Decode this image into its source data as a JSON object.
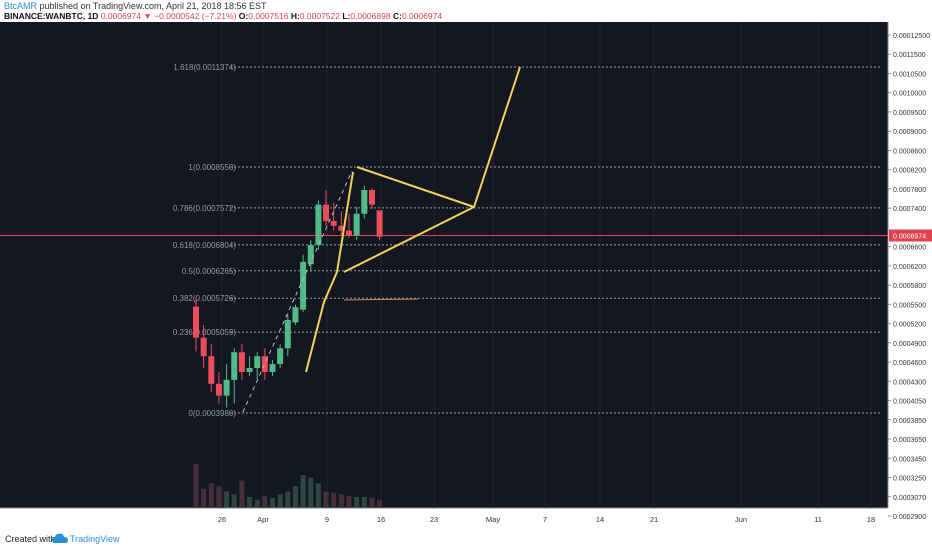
{
  "header": {
    "author": "BtcAMR",
    "published": "published on TradingView.com, April 21, 2018 18:56 EST",
    "symbol": "BINANCE:WANBTC, 1D",
    "last": "0.0006974",
    "arrow": "▼",
    "change": "−0.0000542 (−7.21%)",
    "o_label": "O:",
    "o_value": "0.0007516",
    "h_label": "H:",
    "h_value": "0.0007522",
    "l_label": "L:",
    "l_value": "0.0006898",
    "c_label": "C:",
    "c_value": "0.0006974"
  },
  "footer": {
    "created": "Created with",
    "brand": "TradingView"
  },
  "chart_data": {
    "type": "candlestick",
    "colors": {
      "background": "#131722",
      "up": "#53b987",
      "down": "#eb4d5c",
      "pattern": "#f5d05a",
      "fib": "#9598a1",
      "last_line": "#e0434f"
    },
    "y_ticks": [
      "0.00012500",
      "0.0011500",
      "0.0010500",
      "0.0010000",
      "0.0009500",
      "0.0009000",
      "0.0008600",
      "0.0008200",
      "0.0007800",
      "0.0007400",
      "0.0006974",
      "0.0006600",
      "0.0006200",
      "0.0005800",
      "0.0005500",
      "0.0005200",
      "0.0004900",
      "0.0004600",
      "0.0004300",
      "0.0004050",
      "0.0003850",
      "0.0003650",
      "0.0003450",
      "0.0003250",
      "0.0003070",
      "0.0002900"
    ],
    "x_ticks": [
      "26",
      "Apr",
      "9",
      "16",
      "23",
      "May",
      "7",
      "14",
      "21",
      "Jun",
      "11",
      "18"
    ],
    "last_price": "0.0006974",
    "fib_levels": [
      {
        "label": "1.618(0.0011374)",
        "value": 0.0011374
      },
      {
        "label": "1(0.0008550)",
        "value": 0.000855
      },
      {
        "label": "0.786(0.0007572)",
        "value": 0.0007572
      },
      {
        "label": "0.618(0.0006804)",
        "value": 0.0006804
      },
      {
        "label": "0.5(0.0006265)",
        "value": 0.0006265
      },
      {
        "label": "0.382(0.0005726)",
        "value": 0.0005726
      },
      {
        "label": "0.236(0.0005059)",
        "value": 0.0005059
      },
      {
        "label": "0(0.0003980)",
        "value": 0.000398
      }
    ],
    "candles": [
      {
        "o": 0.000556,
        "h": 0.000575,
        "l": 0.000476,
        "c": 0.000495
      },
      {
        "o": 0.000495,
        "h": 0.00052,
        "l": 0.000455,
        "c": 0.00047
      },
      {
        "o": 0.00047,
        "h": 0.000485,
        "l": 0.000425,
        "c": 0.000435
      },
      {
        "o": 0.000435,
        "h": 0.00045,
        "l": 0.00041,
        "c": 0.00042
      },
      {
        "o": 0.00042,
        "h": 0.00046,
        "l": 0.000405,
        "c": 0.00044
      },
      {
        "o": 0.00044,
        "h": 0.00048,
        "l": 0.00041,
        "c": 0.000475
      },
      {
        "o": 0.000475,
        "h": 0.000485,
        "l": 0.00044,
        "c": 0.00045
      },
      {
        "o": 0.00045,
        "h": 0.00047,
        "l": 0.000445,
        "c": 0.000455
      },
      {
        "o": 0.000455,
        "h": 0.000475,
        "l": 0.00044,
        "c": 0.00047
      },
      {
        "o": 0.00047,
        "h": 0.00048,
        "l": 0.00044,
        "c": 0.00045
      },
      {
        "o": 0.00045,
        "h": 0.000465,
        "l": 0.000445,
        "c": 0.00046
      },
      {
        "o": 0.00046,
        "h": 0.000485,
        "l": 0.000455,
        "c": 0.00048
      },
      {
        "o": 0.00048,
        "h": 0.00054,
        "l": 0.00047,
        "c": 0.00053
      },
      {
        "o": 0.000525,
        "h": 0.00056,
        "l": 0.00052,
        "c": 0.000555
      },
      {
        "o": 0.00055,
        "h": 0.00066,
        "l": 0.000545,
        "c": 0.000645
      },
      {
        "o": 0.00064,
        "h": 0.00069,
        "l": 0.000625,
        "c": 0.00068
      },
      {
        "o": 0.00068,
        "h": 0.000775,
        "l": 0.00067,
        "c": 0.000765
      },
      {
        "o": 0.000765,
        "h": 0.0008,
        "l": 0.00072,
        "c": 0.00073
      },
      {
        "o": 0.00073,
        "h": 0.00077,
        "l": 0.00071,
        "c": 0.00072
      },
      {
        "o": 0.00072,
        "h": 0.00075,
        "l": 0.0007,
        "c": 0.00071
      },
      {
        "o": 0.00071,
        "h": 0.000745,
        "l": 0.000695,
        "c": 0.0007
      },
      {
        "o": 0.0007,
        "h": 0.00076,
        "l": 0.00069,
        "c": 0.000745
      },
      {
        "o": 0.000745,
        "h": 0.00081,
        "l": 0.000735,
        "c": 0.0008
      },
      {
        "o": 0.0008,
        "h": 0.000805,
        "l": 0.000755,
        "c": 0.000765
      },
      {
        "o": 0.000752,
        "h": 0.000752,
        "l": 0.00069,
        "c": 0.000697
      }
    ],
    "volumes": [
      0.8,
      0.35,
      0.45,
      0.4,
      0.3,
      0.25,
      0.5,
      0.2,
      0.15,
      0.22,
      0.18,
      0.25,
      0.3,
      0.4,
      0.6,
      0.55,
      0.45,
      0.3,
      0.28,
      0.25,
      0.22,
      0.2,
      0.2,
      0.18,
      0.15
    ]
  }
}
